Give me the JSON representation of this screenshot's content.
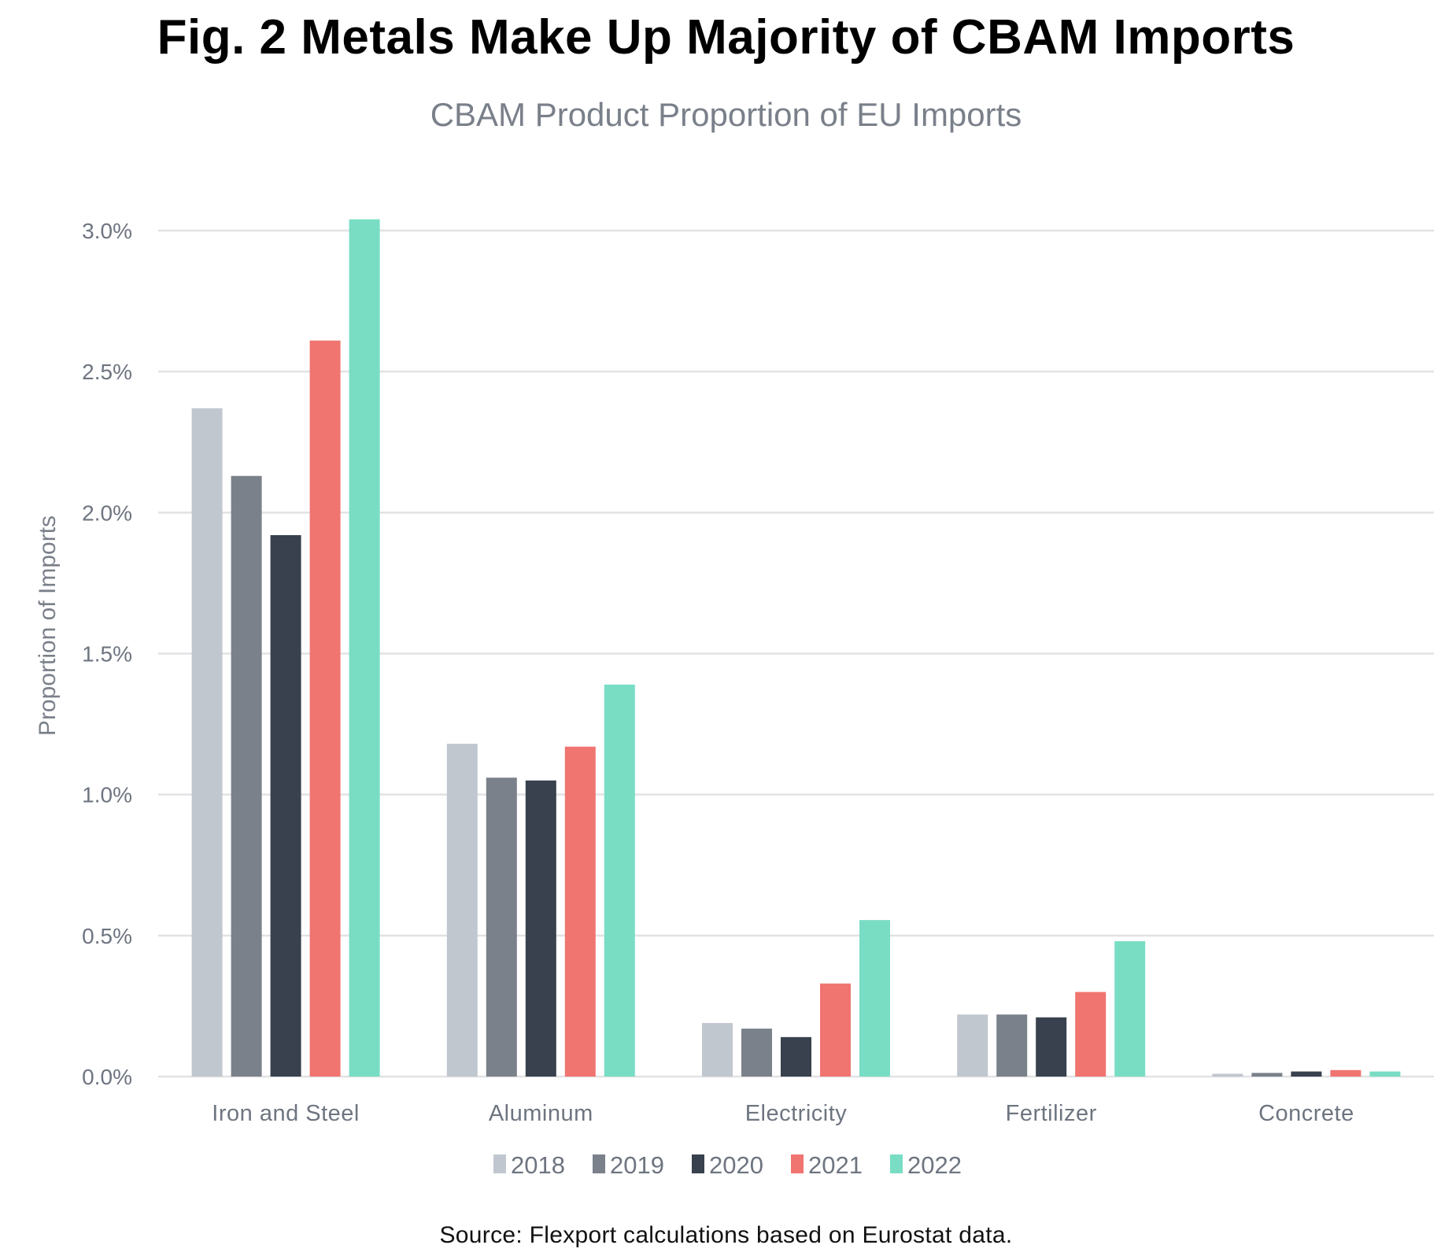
{
  "header": {
    "title": "Fig. 2 Metals Make Up Majority of CBAM Imports",
    "subtitle": "CBAM Product Proportion of EU Imports"
  },
  "footer": {
    "source": "Source: Flexport calculations based on Eurostat data."
  },
  "chart_data": {
    "type": "bar",
    "title": "Fig. 2 Metals Make Up Majority of CBAM Imports",
    "subtitle": "CBAM Product Proportion of EU Imports",
    "xlabel": "",
    "ylabel": "Proportion of Imports",
    "ylim": [
      0,
      3.0
    ],
    "yunit": "%",
    "yticks": [
      0.0,
      0.5,
      1.0,
      1.5,
      2.0,
      2.5,
      3.0
    ],
    "ytick_labels": [
      "0.0%",
      "0.5%",
      "1.0%",
      "1.5%",
      "2.0%",
      "2.5%",
      "3.0%"
    ],
    "grid": true,
    "legend_position": "bottom",
    "categories": [
      "Iron and Steel",
      "Aluminum",
      "Electricity",
      "Fertilizer",
      "Concrete"
    ],
    "series": [
      {
        "name": "2018",
        "color": "#c1c7cf",
        "values": [
          2.37,
          1.18,
          0.19,
          0.22,
          0.01
        ]
      },
      {
        "name": "2019",
        "color": "#7b818a",
        "values": [
          2.13,
          1.06,
          0.17,
          0.22,
          0.013
        ]
      },
      {
        "name": "2020",
        "color": "#38414d",
        "values": [
          1.92,
          1.05,
          0.14,
          0.21,
          0.018
        ]
      },
      {
        "name": "2021",
        "color": "#f07470",
        "values": [
          2.61,
          1.17,
          0.33,
          0.3,
          0.023
        ]
      },
      {
        "name": "2022",
        "color": "#79ddc4",
        "values": [
          3.04,
          1.39,
          0.555,
          0.48,
          0.018
        ]
      }
    ]
  }
}
